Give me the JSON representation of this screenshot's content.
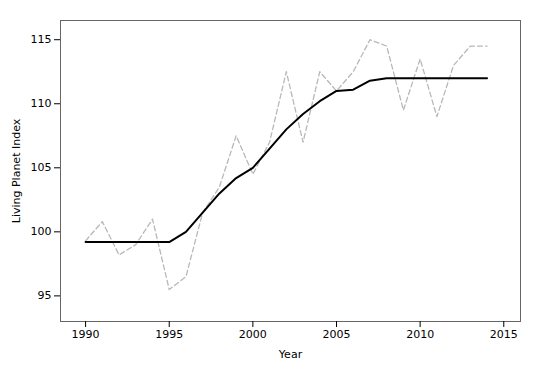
{
  "chart_data": {
    "type": "line",
    "xlabel": "Year",
    "ylabel": "Living Planet Index",
    "x": [
      1990,
      1991,
      1992,
      1993,
      1994,
      1995,
      1996,
      1997,
      1998,
      1999,
      2000,
      2001,
      2002,
      2003,
      2004,
      2005,
      2006,
      2007,
      2008,
      2009,
      2010,
      2011,
      2012,
      2013,
      2014
    ],
    "series": [
      {
        "color": "#b8b8b8",
        "line_style": "dashed",
        "values": [
          99.3,
          100.8,
          98.2,
          99.0,
          101.0,
          95.5,
          96.5,
          101.5,
          103.5,
          107.5,
          104.5,
          107.0,
          112.5,
          107.0,
          112.5,
          111.0,
          112.5,
          115.0,
          114.5,
          109.5,
          113.5,
          109.0,
          113.0,
          114.5,
          114.5
        ]
      },
      {
        "color": "#000000",
        "line_style": "solid",
        "values": [
          99.2,
          99.2,
          99.2,
          99.2,
          99.2,
          99.2,
          100.0,
          101.5,
          103.0,
          104.2,
          105.0,
          106.5,
          108.0,
          109.2,
          110.2,
          111.0,
          111.1,
          111.8,
          112.0,
          112.0,
          112.0,
          112.0,
          112.0,
          112.0,
          112.0
        ]
      }
    ],
    "xlim": [
      1988.5,
      2016.0
    ],
    "ylim": [
      93.0,
      116.5
    ],
    "xticks": [
      1990,
      1995,
      2000,
      2005,
      2010,
      2015
    ],
    "yticks": [
      95,
      100,
      105,
      110,
      115
    ],
    "grid": false
  }
}
